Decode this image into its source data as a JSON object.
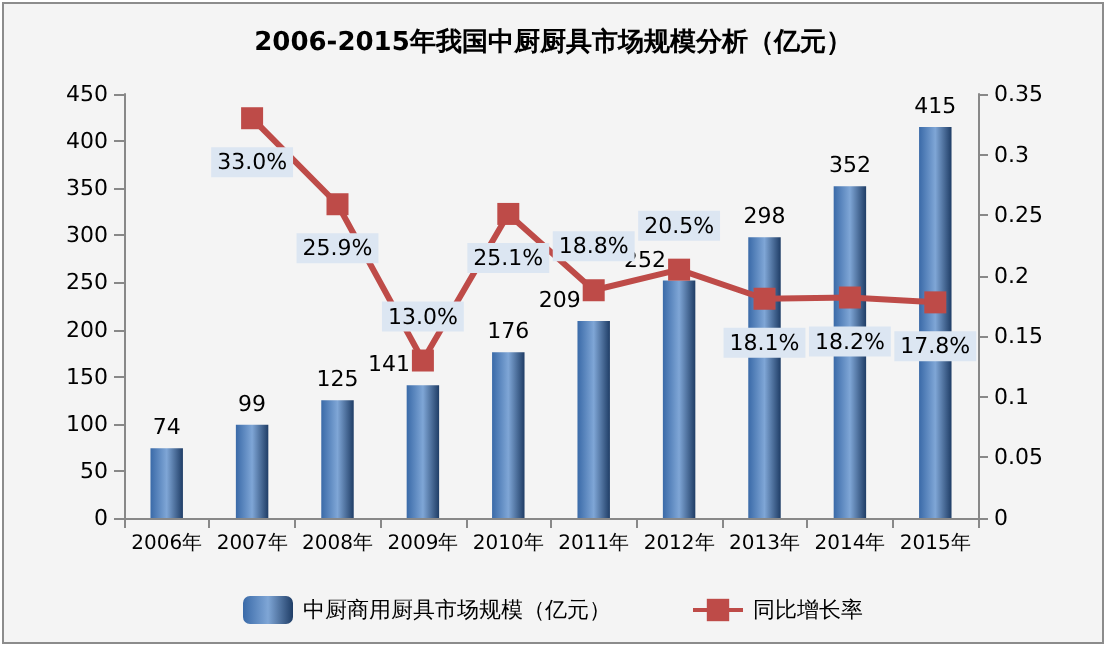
{
  "chart_data": {
    "type": "bar",
    "title": "2006-2015年我国中厨厨具市场规模分析（亿元）",
    "categories": [
      "2006年",
      "2007年",
      "2008年",
      "2009年",
      "2010年",
      "2011年",
      "2012年",
      "2013年",
      "2014年",
      "2015年"
    ],
    "series": [
      {
        "name": "中厨商用厨具市场规模（亿元）",
        "color": "#3a6aa8",
        "values": [
          74,
          99,
          125,
          141,
          176,
          209,
          252,
          298,
          352,
          415
        ],
        "value_labels": [
          "74",
          "99",
          "125",
          "141",
          "176",
          "209",
          "252",
          "298",
          "352",
          "415"
        ]
      },
      {
        "name": "同比增长率",
        "type": "line",
        "axis": "y2",
        "color": "#be4b48",
        "values": [
          null,
          0.33,
          0.259,
          0.13,
          0.251,
          0.188,
          0.205,
          0.181,
          0.182,
          0.178
        ],
        "value_labels": [
          null,
          "33.0%",
          "25.9%",
          "13.0%",
          "25.1%",
          "18.8%",
          "20.5%",
          "18.1%",
          "18.2%",
          "17.8%"
        ]
      }
    ],
    "ylim": [
      0,
      450
    ],
    "yticks": [
      0,
      50,
      100,
      150,
      200,
      250,
      300,
      350,
      400,
      450
    ],
    "y2lim": [
      0,
      0.35
    ],
    "y2ticks": [
      0,
      0.05,
      0.1,
      0.15,
      0.2,
      0.25,
      0.3,
      0.35
    ],
    "legend": "bottom",
    "marker": "square",
    "grid": false
  }
}
